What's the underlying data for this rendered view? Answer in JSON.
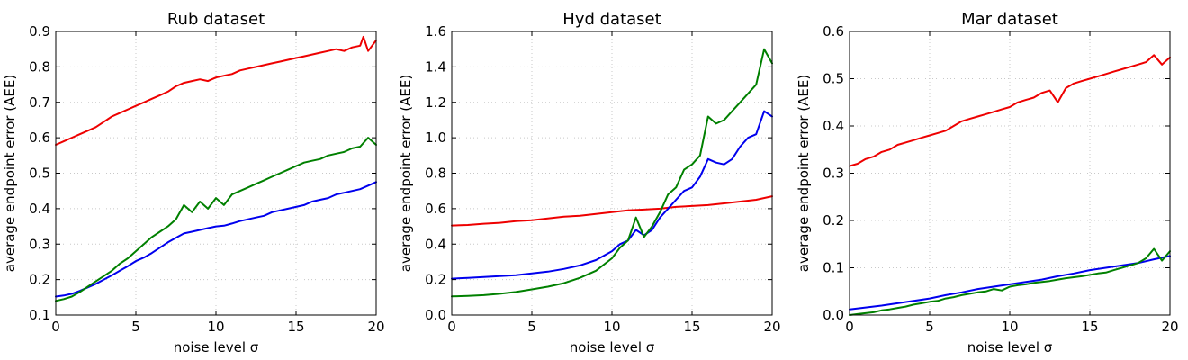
{
  "chart_data": [
    {
      "type": "line",
      "title": "Rub dataset",
      "xlabel": "noise level σ",
      "ylabel": "average endpoint error (AEE)",
      "xlim": [
        0,
        20
      ],
      "ylim": [
        0.1,
        0.9
      ],
      "xticks": [
        0,
        5,
        10,
        15,
        20
      ],
      "yticks": [
        0.1,
        0.2,
        0.3,
        0.4,
        0.5,
        0.6,
        0.7,
        0.8,
        0.9
      ],
      "ytick_labels": [
        "0.1",
        "0.2",
        "0.3",
        "0.4",
        "0.5",
        "0.6",
        "0.7",
        "0.8",
        "0.9"
      ],
      "grid": true,
      "series": [
        {
          "color": "#ee0000",
          "x": [
            0,
            0.5,
            1,
            1.5,
            2,
            2.5,
            3,
            3.5,
            4,
            4.5,
            5,
            5.5,
            6,
            6.5,
            7,
            7.5,
            8,
            8.5,
            9,
            9.5,
            10,
            10.5,
            11,
            11.5,
            12,
            12.5,
            13,
            13.5,
            14,
            14.5,
            15,
            15.5,
            16,
            16.5,
            17,
            17.5,
            18,
            18.5,
            19,
            19.2,
            19.5,
            20
          ],
          "y": [
            0.58,
            0.59,
            0.6,
            0.61,
            0.62,
            0.63,
            0.645,
            0.66,
            0.67,
            0.68,
            0.69,
            0.7,
            0.71,
            0.72,
            0.73,
            0.745,
            0.755,
            0.76,
            0.765,
            0.76,
            0.77,
            0.775,
            0.78,
            0.79,
            0.795,
            0.8,
            0.805,
            0.81,
            0.815,
            0.82,
            0.825,
            0.83,
            0.835,
            0.84,
            0.845,
            0.85,
            0.845,
            0.855,
            0.86,
            0.885,
            0.845,
            0.875
          ]
        },
        {
          "color": "#0000ee",
          "x": [
            0,
            0.5,
            1,
            1.5,
            2,
            2.5,
            3,
            3.5,
            4,
            4.5,
            5,
            5.5,
            6,
            6.5,
            7,
            7.5,
            8,
            8.5,
            9,
            9.5,
            10,
            10.5,
            11,
            11.5,
            12,
            12.5,
            13,
            13.5,
            14,
            14.5,
            15,
            15.5,
            16,
            16.5,
            17,
            17.5,
            18,
            18.5,
            19,
            19.5,
            20
          ],
          "y": [
            0.152,
            0.155,
            0.16,
            0.168,
            0.178,
            0.188,
            0.2,
            0.212,
            0.225,
            0.238,
            0.252,
            0.262,
            0.275,
            0.29,
            0.305,
            0.318,
            0.33,
            0.335,
            0.34,
            0.345,
            0.35,
            0.352,
            0.358,
            0.365,
            0.37,
            0.375,
            0.38,
            0.39,
            0.395,
            0.4,
            0.405,
            0.41,
            0.42,
            0.425,
            0.43,
            0.44,
            0.445,
            0.45,
            0.455,
            0.465,
            0.475
          ]
        },
        {
          "color": "#008000",
          "x": [
            0,
            0.5,
            1,
            1.5,
            2,
            2.5,
            3,
            3.5,
            4,
            4.5,
            5,
            5.5,
            6,
            6.5,
            7,
            7.5,
            8,
            8.5,
            9,
            9.5,
            10,
            10.5,
            11,
            11.5,
            12,
            12.5,
            13,
            13.5,
            14,
            14.5,
            15,
            15.5,
            16,
            16.5,
            17,
            17.5,
            18,
            18.5,
            19,
            19.5,
            20
          ],
          "y": [
            0.14,
            0.145,
            0.152,
            0.165,
            0.18,
            0.195,
            0.21,
            0.225,
            0.245,
            0.26,
            0.28,
            0.3,
            0.32,
            0.335,
            0.35,
            0.37,
            0.41,
            0.39,
            0.42,
            0.4,
            0.43,
            0.41,
            0.44,
            0.45,
            0.46,
            0.47,
            0.48,
            0.49,
            0.5,
            0.51,
            0.52,
            0.53,
            0.535,
            0.54,
            0.55,
            0.555,
            0.56,
            0.57,
            0.575,
            0.6,
            0.58
          ]
        }
      ]
    },
    {
      "type": "line",
      "title": "Hyd dataset",
      "xlabel": "noise level σ",
      "ylabel": "average endpoint error (AEE)",
      "xlim": [
        0,
        20
      ],
      "ylim": [
        0.0,
        1.6
      ],
      "xticks": [
        0,
        5,
        10,
        15,
        20
      ],
      "yticks": [
        0.0,
        0.2,
        0.4,
        0.6,
        0.8,
        1.0,
        1.2,
        1.4,
        1.6
      ],
      "ytick_labels": [
        "0.0",
        "0.2",
        "0.4",
        "0.6",
        "0.8",
        "1.0",
        "1.2",
        "1.4",
        "1.6"
      ],
      "grid": true,
      "series": [
        {
          "color": "#ee0000",
          "x": [
            0,
            1,
            2,
            3,
            4,
            5,
            6,
            7,
            8,
            9,
            10,
            11,
            12,
            13,
            14,
            15,
            16,
            17,
            18,
            19,
            20
          ],
          "y": [
            0.505,
            0.508,
            0.515,
            0.52,
            0.53,
            0.535,
            0.545,
            0.555,
            0.56,
            0.57,
            0.58,
            0.59,
            0.595,
            0.6,
            0.61,
            0.615,
            0.62,
            0.63,
            0.64,
            0.65,
            0.67
          ]
        },
        {
          "color": "#0000ee",
          "x": [
            0,
            1,
            2,
            3,
            4,
            5,
            6,
            7,
            8,
            9,
            10,
            10.5,
            11,
            11.5,
            12,
            12.5,
            13,
            13.5,
            14,
            14.5,
            15,
            15.5,
            16,
            16.5,
            17,
            17.5,
            18,
            18.5,
            19,
            19.5,
            20
          ],
          "y": [
            0.205,
            0.21,
            0.215,
            0.22,
            0.225,
            0.235,
            0.245,
            0.26,
            0.28,
            0.31,
            0.36,
            0.4,
            0.42,
            0.48,
            0.45,
            0.48,
            0.55,
            0.6,
            0.65,
            0.7,
            0.72,
            0.78,
            0.88,
            0.86,
            0.85,
            0.88,
            0.95,
            1.0,
            1.02,
            1.15,
            1.12
          ]
        },
        {
          "color": "#008000",
          "x": [
            0,
            1,
            2,
            3,
            4,
            5,
            6,
            7,
            8,
            9,
            10,
            10.5,
            11,
            11.5,
            12,
            12.5,
            13,
            13.5,
            14,
            14.5,
            15,
            15.5,
            16,
            16.5,
            17,
            17.5,
            18,
            18.5,
            19,
            19.5,
            20
          ],
          "y": [
            0.105,
            0.108,
            0.112,
            0.12,
            0.13,
            0.145,
            0.16,
            0.18,
            0.21,
            0.25,
            0.32,
            0.38,
            0.42,
            0.55,
            0.44,
            0.5,
            0.58,
            0.68,
            0.72,
            0.82,
            0.85,
            0.9,
            1.12,
            1.08,
            1.1,
            1.15,
            1.2,
            1.25,
            1.3,
            1.5,
            1.42
          ]
        }
      ]
    },
    {
      "type": "line",
      "title": "Mar dataset",
      "xlabel": "noise level σ",
      "ylabel": "average endpoint error (AEE)",
      "xlim": [
        0,
        20
      ],
      "ylim": [
        0.0,
        0.6
      ],
      "xticks": [
        0,
        5,
        10,
        15,
        20
      ],
      "yticks": [
        0.0,
        0.1,
        0.2,
        0.3,
        0.4,
        0.5,
        0.6
      ],
      "ytick_labels": [
        "0.0",
        "0.1",
        "0.2",
        "0.3",
        "0.4",
        "0.5",
        "0.6"
      ],
      "grid": true,
      "series": [
        {
          "color": "#ee0000",
          "x": [
            0,
            0.5,
            1,
            1.5,
            2,
            2.5,
            3,
            3.5,
            4,
            4.5,
            5,
            5.5,
            6,
            6.5,
            7,
            7.5,
            8,
            8.5,
            9,
            9.5,
            10,
            10.5,
            11,
            11.5,
            12,
            12.5,
            13,
            13.5,
            14,
            14.5,
            15,
            15.5,
            16,
            16.5,
            17,
            17.5,
            18,
            18.5,
            19,
            19.5,
            20
          ],
          "y": [
            0.315,
            0.32,
            0.33,
            0.335,
            0.345,
            0.35,
            0.36,
            0.365,
            0.37,
            0.375,
            0.38,
            0.385,
            0.39,
            0.4,
            0.41,
            0.415,
            0.42,
            0.425,
            0.43,
            0.435,
            0.44,
            0.45,
            0.455,
            0.46,
            0.47,
            0.475,
            0.45,
            0.48,
            0.49,
            0.495,
            0.5,
            0.505,
            0.51,
            0.515,
            0.52,
            0.525,
            0.53,
            0.535,
            0.55,
            0.53,
            0.545
          ]
        },
        {
          "color": "#0000ee",
          "x": [
            0,
            1,
            2,
            3,
            4,
            5,
            6,
            7,
            8,
            9,
            10,
            11,
            12,
            13,
            14,
            15,
            16,
            17,
            18,
            19,
            20
          ],
          "y": [
            0.012,
            0.016,
            0.02,
            0.025,
            0.03,
            0.035,
            0.042,
            0.048,
            0.055,
            0.06,
            0.065,
            0.07,
            0.075,
            0.082,
            0.088,
            0.095,
            0.1,
            0.105,
            0.11,
            0.118,
            0.125
          ]
        },
        {
          "color": "#008000",
          "x": [
            0,
            0.5,
            1,
            1.5,
            2,
            2.5,
            3,
            3.5,
            4,
            4.5,
            5,
            5.5,
            6,
            6.5,
            7,
            7.5,
            8,
            8.5,
            9,
            9.5,
            10,
            10.5,
            11,
            11.5,
            12,
            12.5,
            13,
            13.5,
            14,
            14.5,
            15,
            15.5,
            16,
            16.5,
            17,
            17.5,
            18,
            18.5,
            19,
            19.5,
            20
          ],
          "y": [
            0.0,
            0.002,
            0.004,
            0.006,
            0.01,
            0.012,
            0.015,
            0.018,
            0.022,
            0.025,
            0.028,
            0.03,
            0.035,
            0.038,
            0.042,
            0.045,
            0.048,
            0.05,
            0.055,
            0.052,
            0.06,
            0.063,
            0.065,
            0.068,
            0.07,
            0.072,
            0.075,
            0.078,
            0.08,
            0.082,
            0.085,
            0.088,
            0.09,
            0.095,
            0.1,
            0.105,
            0.11,
            0.12,
            0.14,
            0.115,
            0.135
          ]
        }
      ]
    }
  ]
}
